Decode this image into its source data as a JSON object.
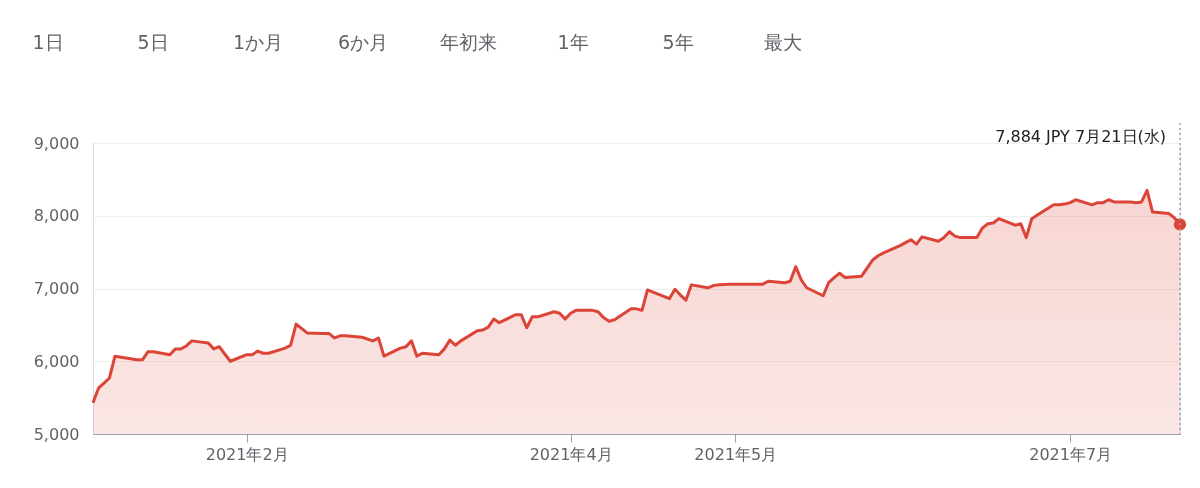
{
  "chart_data": {
    "type": "area",
    "x": [
      "2021-01-04",
      "2021-01-05",
      "2021-01-06",
      "2021-01-07",
      "2021-01-08",
      "2021-01-12",
      "2021-01-13",
      "2021-01-14",
      "2021-01-15",
      "2021-01-18",
      "2021-01-19",
      "2021-01-20",
      "2021-01-21",
      "2021-01-22",
      "2021-01-25",
      "2021-01-26",
      "2021-01-27",
      "2021-01-28",
      "2021-01-29",
      "2021-02-01",
      "2021-02-02",
      "2021-02-03",
      "2021-02-04",
      "2021-02-05",
      "2021-02-08",
      "2021-02-09",
      "2021-02-10",
      "2021-02-12",
      "2021-02-15",
      "2021-02-16",
      "2021-02-17",
      "2021-02-18",
      "2021-02-19",
      "2021-02-22",
      "2021-02-24",
      "2021-02-25",
      "2021-02-26",
      "2021-03-01",
      "2021-03-02",
      "2021-03-03",
      "2021-03-04",
      "2021-03-05",
      "2021-03-08",
      "2021-03-09",
      "2021-03-10",
      "2021-03-11",
      "2021-03-12",
      "2021-03-15",
      "2021-03-16",
      "2021-03-17",
      "2021-03-18",
      "2021-03-19",
      "2021-03-22",
      "2021-03-23",
      "2021-03-24",
      "2021-03-25",
      "2021-03-26",
      "2021-03-29",
      "2021-03-30",
      "2021-03-31",
      "2021-04-01",
      "2021-04-02",
      "2021-04-05",
      "2021-04-06",
      "2021-04-07",
      "2021-04-08",
      "2021-04-09",
      "2021-04-12",
      "2021-04-13",
      "2021-04-14",
      "2021-04-15",
      "2021-04-16",
      "2021-04-19",
      "2021-04-20",
      "2021-04-21",
      "2021-04-22",
      "2021-04-23",
      "2021-04-26",
      "2021-04-27",
      "2021-04-28",
      "2021-04-30",
      "2021-05-06",
      "2021-05-07",
      "2021-05-10",
      "2021-05-11",
      "2021-05-12",
      "2021-05-13",
      "2021-05-14",
      "2021-05-17",
      "2021-05-18",
      "2021-05-19",
      "2021-05-20",
      "2021-05-21",
      "2021-05-24",
      "2021-05-25",
      "2021-05-26",
      "2021-05-27",
      "2021-05-28",
      "2021-05-31",
      "2021-06-01",
      "2021-06-02",
      "2021-06-03",
      "2021-06-04",
      "2021-06-07",
      "2021-06-08",
      "2021-06-09",
      "2021-06-10",
      "2021-06-11",
      "2021-06-14",
      "2021-06-15",
      "2021-06-16",
      "2021-06-17",
      "2021-06-18",
      "2021-06-21",
      "2021-06-22",
      "2021-06-23",
      "2021-06-24",
      "2021-06-25",
      "2021-06-28",
      "2021-06-29",
      "2021-06-30",
      "2021-07-01",
      "2021-07-02",
      "2021-07-05",
      "2021-07-06",
      "2021-07-07",
      "2021-07-08",
      "2021-07-09",
      "2021-07-12",
      "2021-07-13",
      "2021-07-14",
      "2021-07-15",
      "2021-07-16",
      "2021-07-19",
      "2021-07-20",
      "2021-07-21"
    ],
    "series": [
      {
        "color": "#db4437",
        "values": [
          5430,
          5630,
          5700,
          5770,
          6070,
          6020,
          6020,
          6130,
          6130,
          6090,
          6170,
          6170,
          6210,
          6280,
          6250,
          6170,
          6200,
          6100,
          6000,
          6090,
          6090,
          6140,
          6110,
          6110,
          6180,
          6220,
          6510,
          6390,
          6380,
          6380,
          6320,
          6350,
          6350,
          6330,
          6280,
          6320,
          6070,
          6180,
          6200,
          6280,
          6070,
          6110,
          6090,
          6170,
          6290,
          6220,
          6280,
          6420,
          6430,
          6470,
          6580,
          6530,
          6640,
          6640,
          6460,
          6610,
          6610,
          6680,
          6660,
          6580,
          6660,
          6700,
          6700,
          6680,
          6600,
          6550,
          6570,
          6720,
          6720,
          6700,
          6980,
          6950,
          6860,
          6990,
          6910,
          6840,
          7050,
          7010,
          7040,
          7050,
          7060,
          7060,
          7100,
          7080,
          7100,
          7300,
          7120,
          7010,
          6900,
          7080,
          7150,
          7210,
          7150,
          7170,
          7280,
          7390,
          7450,
          7490,
          7590,
          7630,
          7670,
          7610,
          7710,
          7650,
          7700,
          7780,
          7720,
          7700,
          7700,
          7830,
          7890,
          7900,
          7960,
          7870,
          7890,
          7700,
          7960,
          8010,
          8150,
          8150,
          8160,
          8180,
          8220,
          8150,
          8180,
          8180,
          8220,
          8190,
          8190,
          8180,
          8190,
          8350,
          8050,
          8030,
          7970,
          7880
        ]
      }
    ],
    "xlim": [
      "2021-01-04",
      "2021-07-21"
    ],
    "xticks": [
      {
        "value": "2021-02-01",
        "label": "2021年2月"
      },
      {
        "value": "2021-04-01",
        "label": "2021年4月"
      },
      {
        "value": "2021-05-01",
        "label": "2021年5月"
      },
      {
        "value": "2021-07-01",
        "label": "2021年7月"
      }
    ],
    "ylim": [
      5000,
      9000
    ],
    "yticks": [
      {
        "value": 5000,
        "label": "5,000"
      },
      {
        "value": 6000,
        "label": "6,000"
      },
      {
        "value": 7000,
        "label": "7,000"
      },
      {
        "value": 8000,
        "label": "8,000"
      },
      {
        "value": 9000,
        "label": "9,000"
      }
    ],
    "grid": "y",
    "ref_lines": [
      {
        "axis": "x",
        "value": "2021-07-21",
        "color": "#9aa0a6",
        "line_style": "dotted"
      }
    ],
    "annotations": [
      "7,884 JPY  7月21日(水)",
      "1日",
      "5日",
      "1か月",
      "6か月",
      "年初来",
      "1年",
      "5年",
      "最大"
    ]
  }
}
